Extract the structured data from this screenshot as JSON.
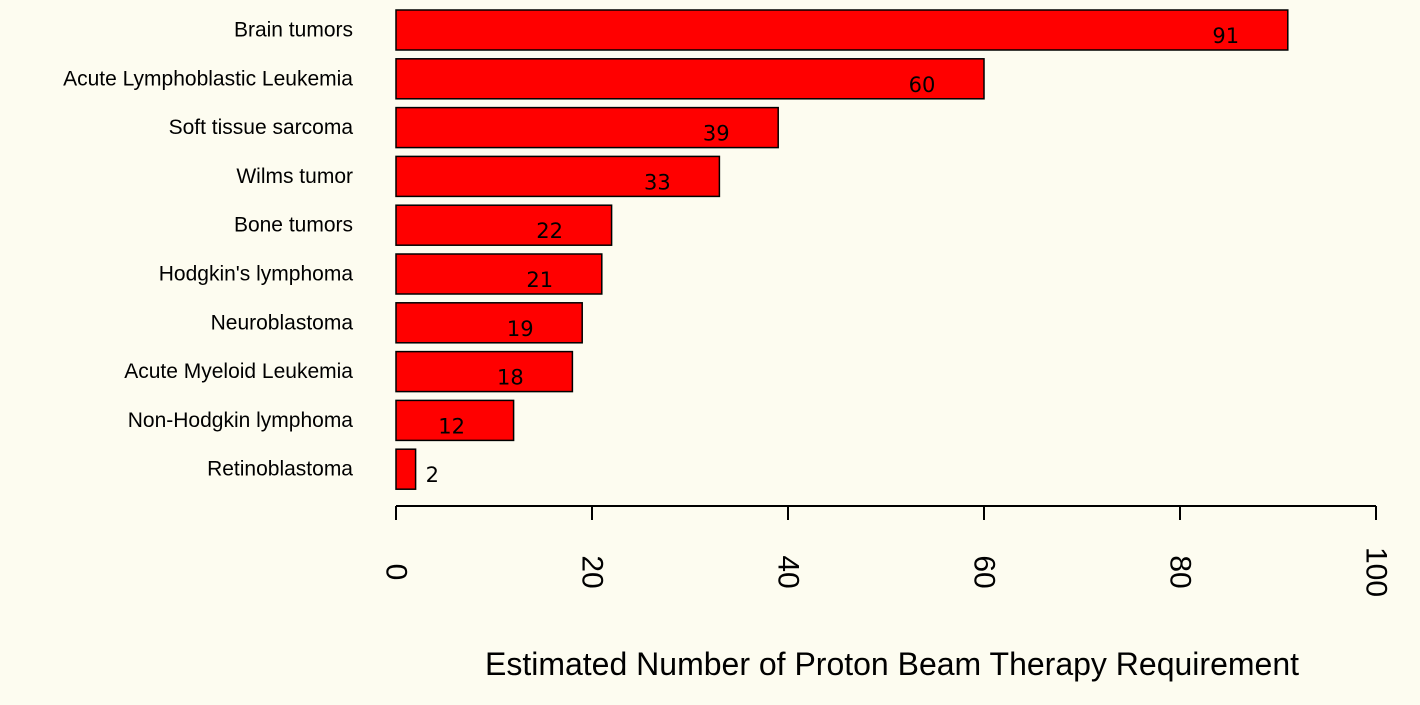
{
  "chart_data": {
    "type": "bar",
    "orientation": "horizontal",
    "categories": [
      "Brain tumors",
      "Acute Lymphoblastic Leukemia",
      "Soft tissue sarcoma",
      "Wilms tumor",
      "Bone tumors",
      "Hodgkin's lymphoma",
      "Neuroblastoma",
      "Acute Myeloid Leukemia",
      "Non-Hodgkin lymphoma",
      "Retinoblastoma"
    ],
    "values": [
      91,
      60,
      39,
      33,
      22,
      21,
      19,
      18,
      12,
      2
    ],
    "title": "",
    "xlabel": "Estimated Number of Proton Beam Therapy Requirement",
    "ylabel": "",
    "xlim": [
      0,
      100
    ],
    "xticks": [
      0,
      20,
      40,
      60,
      80,
      100
    ],
    "grid": false,
    "bar_color": "#ff0000",
    "bar_edge_color": "#000000",
    "background_color": "#fdfcf0"
  }
}
